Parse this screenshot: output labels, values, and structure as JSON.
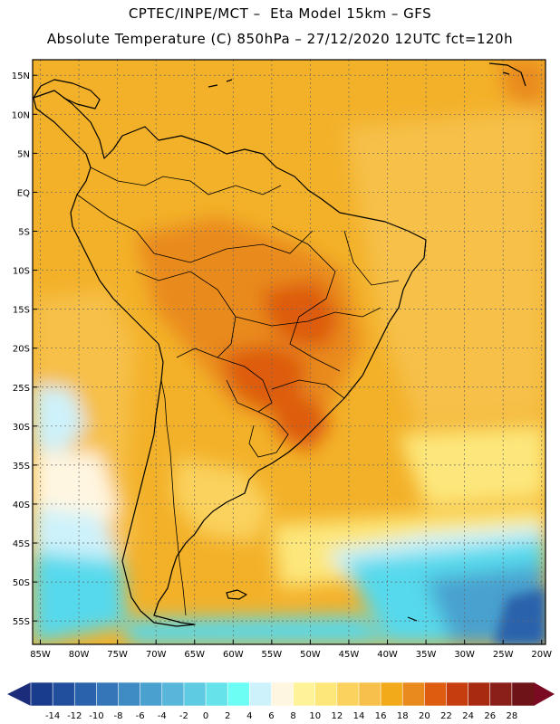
{
  "header": {
    "line1": "CPTEC/INPE/MCT –  Eta Model 15km – GFS",
    "line2": "Absolute Temperature (C) 850hPa – 27/12/2020 12UTC fct=120h"
  },
  "axes": {
    "lat_labels": [
      "15N",
      "10N",
      "5N",
      "EQ",
      "5S",
      "10S",
      "15S",
      "20S",
      "25S",
      "30S",
      "35S",
      "40S",
      "45S",
      "50S",
      "55S"
    ],
    "lat_values": [
      15,
      10,
      5,
      0,
      -5,
      -10,
      -15,
      -20,
      -25,
      -30,
      -35,
      -40,
      -45,
      -50,
      -55
    ],
    "lon_labels": [
      "85W",
      "80W",
      "75W",
      "70W",
      "65W",
      "60W",
      "55W",
      "50W",
      "45W",
      "40W",
      "35W",
      "30W",
      "25W",
      "20W"
    ],
    "lon_values": [
      -85,
      -80,
      -75,
      -70,
      -65,
      -60,
      -55,
      -50,
      -45,
      -40,
      -35,
      -30,
      -25,
      -20
    ],
    "extent": {
      "lon_min": -86,
      "lon_max": -19.5,
      "lat_min": -58,
      "lat_max": 17
    }
  },
  "colorbar": {
    "labels": [
      "-14",
      "-12",
      "-10",
      "-8",
      "-6",
      "-4",
      "-2",
      "0",
      "2",
      "4",
      "6",
      "8",
      "10",
      "12",
      "14",
      "16",
      "18",
      "20",
      "22",
      "24",
      "26",
      "28"
    ],
    "underflow_color": "#1b2c7a",
    "overflow_color": "#7a0b22",
    "colors": [
      "#1a3c8c",
      "#214f9d",
      "#2a62ab",
      "#3576b8",
      "#3f8bc4",
      "#4aa1cf",
      "#57b6d9",
      "#5fcbe2",
      "#66e2ea",
      "#6cfdf5",
      "#cdf2fb",
      "#fff6e1",
      "#fff39a",
      "#fde77b",
      "#fad25d",
      "#f6c04a",
      "#f2aa1b",
      "#e98a1e",
      "#dd5c0f",
      "#c63e0f",
      "#a82a10",
      "#8a1e18",
      "#6e1419"
    ]
  },
  "legend_label_values": [
    -14,
    -12,
    -10,
    -8,
    -6,
    -4,
    -2,
    0,
    2,
    4,
    6,
    8,
    10,
    12,
    14,
    16,
    18,
    20,
    22,
    24,
    26,
    28
  ],
  "field_colors": {
    "base": "#f3b129",
    "warm": "#e98a1e",
    "hot": "#dd5c0f",
    "mild": "#f6c04a",
    "cool": "#fad25d",
    "light": "#fde77b",
    "cream": "#fff6e1",
    "pale_blue": "#cdf2fb",
    "cyan": "#57d9ec",
    "ocean_blue": "#4aa1cf",
    "deep_blue": "#2a62ab"
  }
}
